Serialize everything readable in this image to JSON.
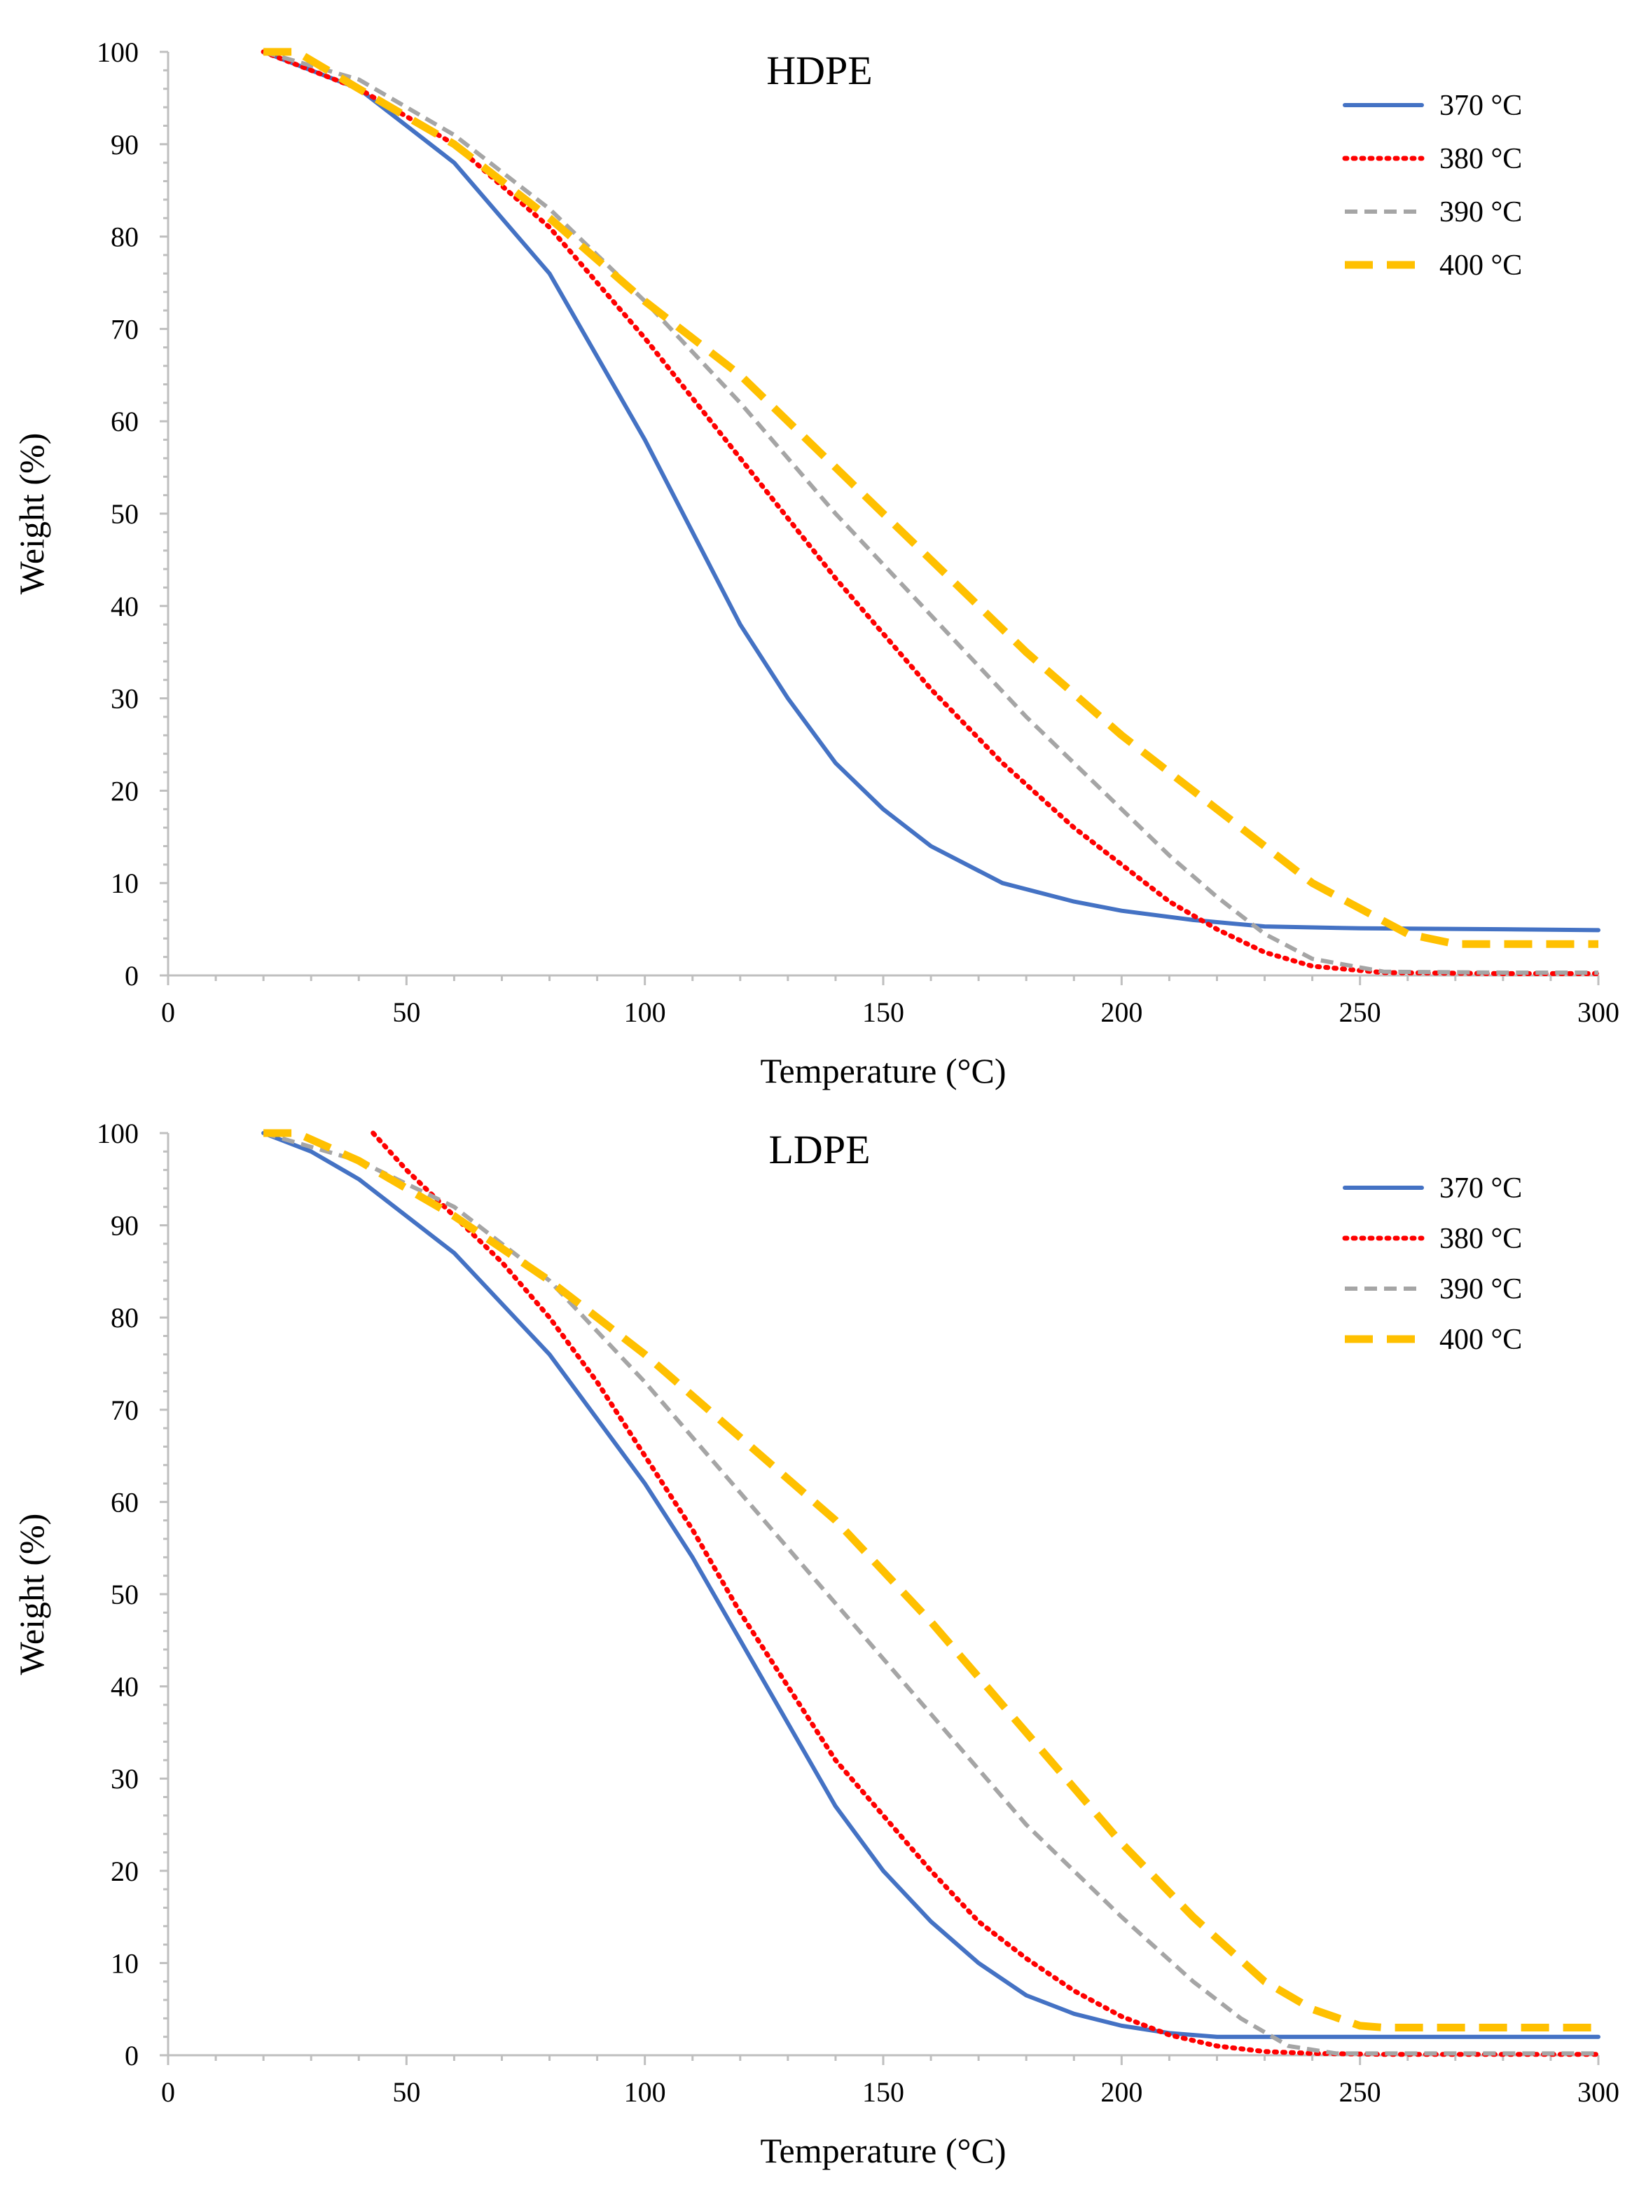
{
  "chart_data": [
    {
      "type": "line",
      "title": "HDPE",
      "xlabel": "Temperature (°C)",
      "ylabel": "Weight (%)",
      "xlim": [
        0,
        300
      ],
      "ylim": [
        0,
        100
      ],
      "xticks": [
        "0",
        "50",
        "100",
        "150",
        "200",
        "250",
        "300"
      ],
      "yticks": [
        "0",
        "10",
        "20",
        "30",
        "40",
        "50",
        "60",
        "70",
        "80",
        "90",
        "100"
      ],
      "legend_position": "top-right",
      "series": [
        {
          "name": "370 °C",
          "color": "#4472c4",
          "style": "solid",
          "x": [
            20,
            40,
            60,
            80,
            90,
            100,
            110,
            120,
            130,
            140,
            150,
            160,
            175,
            190,
            200,
            215,
            230,
            250,
            280,
            300
          ],
          "y": [
            100,
            96,
            88,
            76,
            67,
            58,
            48,
            38,
            30,
            23,
            18,
            14,
            10,
            8,
            7,
            6,
            5.3,
            5.1,
            5.0,
            4.9
          ]
        },
        {
          "name": "380 °C",
          "color": "#ff0000",
          "style": "dotted",
          "x": [
            20,
            40,
            60,
            80,
            100,
            120,
            140,
            160,
            175,
            190,
            200,
            210,
            220,
            230,
            240,
            255,
            280,
            300
          ],
          "y": [
            100,
            96,
            90,
            81,
            69,
            56,
            43,
            31,
            23,
            16,
            12,
            8,
            5,
            2.5,
            1,
            0.3,
            0.2,
            0.2
          ]
        },
        {
          "name": "390 °C",
          "color": "#a5a5a5",
          "style": "dashed",
          "x": [
            20,
            40,
            60,
            80,
            100,
            120,
            140,
            160,
            180,
            200,
            210,
            220,
            230,
            240,
            255,
            280,
            300
          ],
          "y": [
            100,
            97,
            91,
            83,
            73,
            62,
            50,
            39,
            28,
            18,
            13,
            8.5,
            4.5,
            1.8,
            0.4,
            0.3,
            0.3
          ]
        },
        {
          "name": "400 °C",
          "color": "#ffc000",
          "style": "long-dash",
          "x": [
            20,
            27,
            40,
            60,
            80,
            100,
            120,
            140,
            160,
            180,
            200,
            220,
            240,
            260,
            270,
            280,
            300
          ],
          "y": [
            100,
            100,
            96,
            90,
            82,
            73,
            65,
            55,
            45,
            35,
            26,
            18,
            10,
            4.5,
            3.4,
            3.4,
            3.4
          ]
        }
      ]
    },
    {
      "type": "line",
      "title": "LDPE",
      "xlabel": "Temperature (°C)",
      "ylabel": "Weight (%)",
      "xlim": [
        0,
        300
      ],
      "ylim": [
        0,
        100
      ],
      "xticks": [
        "0",
        "50",
        "100",
        "150",
        "200",
        "250",
        "300"
      ],
      "yticks": [
        "0",
        "10",
        "20",
        "30",
        "40",
        "50",
        "60",
        "70",
        "80",
        "90",
        "100"
      ],
      "legend_position": "top-right",
      "series": [
        {
          "name": "370 °C",
          "color": "#4472c4",
          "style": "solid",
          "x": [
            20,
            30,
            40,
            60,
            80,
            100,
            110,
            120,
            130,
            140,
            150,
            160,
            170,
            180,
            190,
            200,
            210,
            220,
            240,
            300
          ],
          "y": [
            100,
            98,
            95,
            87,
            76,
            62,
            54,
            45,
            36,
            27,
            20,
            14.5,
            10,
            6.5,
            4.5,
            3.2,
            2.4,
            2,
            2,
            2
          ]
        },
        {
          "name": "380 °C",
          "color": "#ff0000",
          "style": "dotted",
          "x": [
            43,
            50,
            60,
            70,
            80,
            90,
            100,
            110,
            120,
            130,
            140,
            150,
            160,
            170,
            180,
            190,
            200,
            210,
            220,
            230,
            240,
            255,
            300
          ],
          "y": [
            100,
            96,
            91,
            86,
            80,
            73,
            65,
            57,
            48,
            40,
            32,
            26,
            20,
            14.5,
            10.5,
            7,
            4.2,
            2.2,
            1,
            0.4,
            0.2,
            0.1,
            0.1
          ]
        },
        {
          "name": "390 °C",
          "color": "#a5a5a5",
          "style": "dashed",
          "x": [
            20,
            40,
            60,
            80,
            100,
            120,
            140,
            160,
            180,
            200,
            215,
            225,
            235,
            245,
            300
          ],
          "y": [
            100,
            97,
            92,
            84,
            73,
            61,
            49,
            37,
            25,
            15,
            8,
            4,
            1,
            0.2,
            0.2
          ]
        },
        {
          "name": "400 °C",
          "color": "#ffc000",
          "style": "long-dash",
          "x": [
            20,
            27,
            40,
            60,
            80,
            100,
            120,
            140,
            160,
            180,
            200,
            215,
            230,
            240,
            250,
            255,
            300
          ],
          "y": [
            100,
            100,
            97,
            91,
            84,
            76,
            67,
            58,
            47,
            35,
            23,
            15,
            8,
            5,
            3.2,
            3.0,
            3.0
          ]
        }
      ]
    }
  ]
}
